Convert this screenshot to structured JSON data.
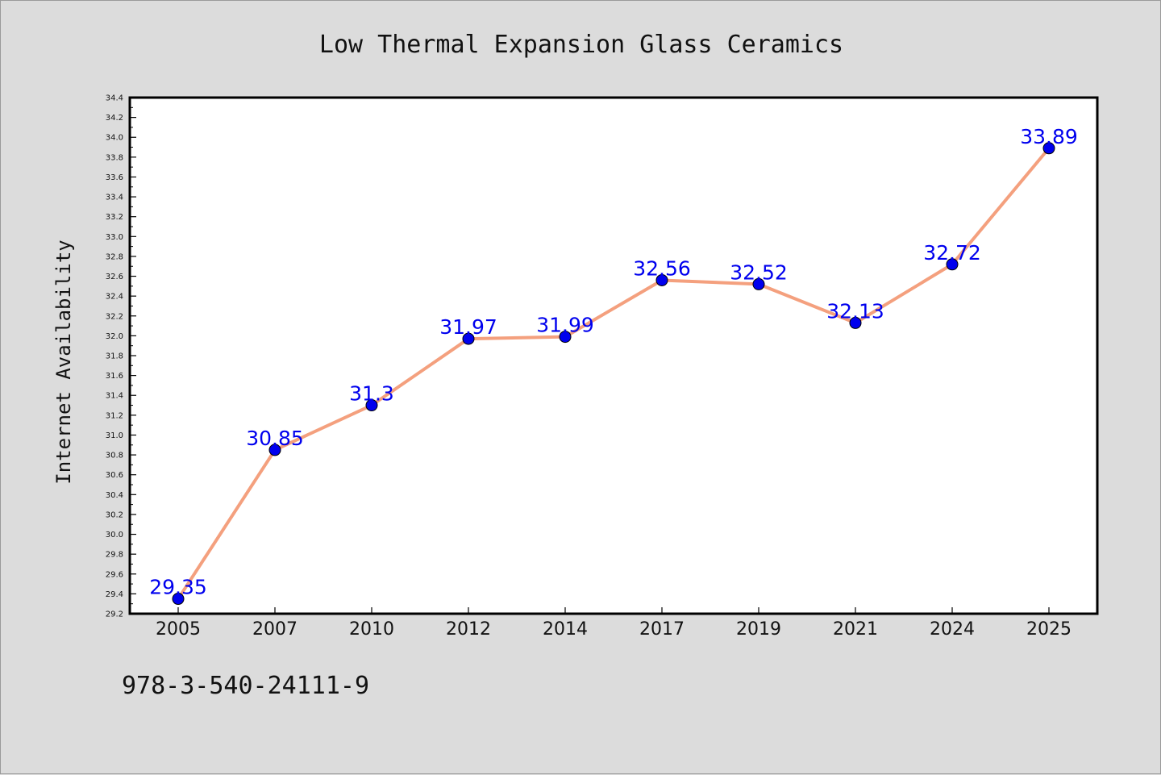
{
  "chart_data": {
    "type": "line",
    "title": "Low Thermal Expansion Glass Ceramics",
    "xlabel": "",
    "ylabel": "Internet Availability",
    "categories": [
      "2005",
      "2007",
      "2010",
      "2012",
      "2014",
      "2017",
      "2019",
      "2021",
      "2024",
      "2025"
    ],
    "series": [
      {
        "values": [
          29.35,
          30.85,
          31.3,
          31.97,
          31.99,
          32.56,
          32.52,
          32.13,
          32.72,
          33.89
        ],
        "data_labels": [
          "29.35",
          "30.85",
          "31.3",
          "31.97",
          "31.99",
          "32.56",
          "32.52",
          "32.13",
          "32.72",
          "33.89"
        ]
      }
    ],
    "ylim": [
      29.2,
      34.4
    ],
    "yticks": [
      "29.2",
      "29.4",
      "29.6",
      "29.8",
      "30.0",
      "30.2",
      "30.4",
      "30.6",
      "30.8",
      "31.0",
      "31.2",
      "31.4",
      "31.6",
      "31.8",
      "32.0",
      "32.2",
      "32.4",
      "32.6",
      "32.8",
      "33.0",
      "33.2",
      "33.4",
      "33.6",
      "33.8",
      "34.0",
      "34.2",
      "34.4"
    ],
    "grid": false,
    "legend": "none",
    "colors": {
      "line": "#f4a07e",
      "marker": "#0000ee",
      "label": "#0000ee",
      "plot_bg": "#ffffff",
      "page_bg": "#dcdcdc"
    }
  },
  "footer": {
    "code": "978-3-540-24111-9"
  }
}
